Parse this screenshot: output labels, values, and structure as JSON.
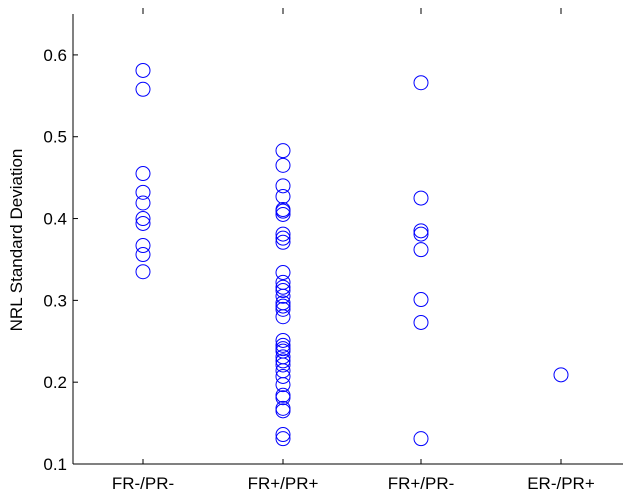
{
  "chart_data": {
    "type": "scatter",
    "title": "",
    "xlabel": "",
    "ylabel": "NRL Standard Deviation",
    "categories": [
      "FR-/PR-",
      "FR+/PR+",
      "FR+/PR-",
      "ER-/PR+"
    ],
    "ylim": [
      0.1,
      0.65
    ],
    "yticks": [
      "0.1",
      "0.2",
      "0.3",
      "0.4",
      "0.5",
      "0.6"
    ],
    "grid": false,
    "marker": "open-circle",
    "color": "#0000ff",
    "series": [
      {
        "category": "FR-/PR-",
        "values": [
          0.581,
          0.558,
          0.455,
          0.432,
          0.419,
          0.4,
          0.394,
          0.367,
          0.356,
          0.335
        ]
      },
      {
        "category": "FR+/PR+",
        "values": [
          0.483,
          0.465,
          0.44,
          0.427,
          0.411,
          0.409,
          0.405,
          0.381,
          0.376,
          0.371,
          0.334,
          0.322,
          0.316,
          0.312,
          0.305,
          0.297,
          0.293,
          0.289,
          0.28,
          0.251,
          0.245,
          0.241,
          0.238,
          0.231,
          0.226,
          0.221,
          0.214,
          0.207,
          0.197,
          0.184,
          0.181,
          0.168,
          0.165,
          0.136,
          0.131
        ]
      },
      {
        "category": "FR+/PR-",
        "values": [
          0.566,
          0.425,
          0.385,
          0.381,
          0.362,
          0.301,
          0.273,
          0.131
        ]
      },
      {
        "category": "ER-/PR+",
        "values": [
          0.209
        ]
      }
    ]
  }
}
